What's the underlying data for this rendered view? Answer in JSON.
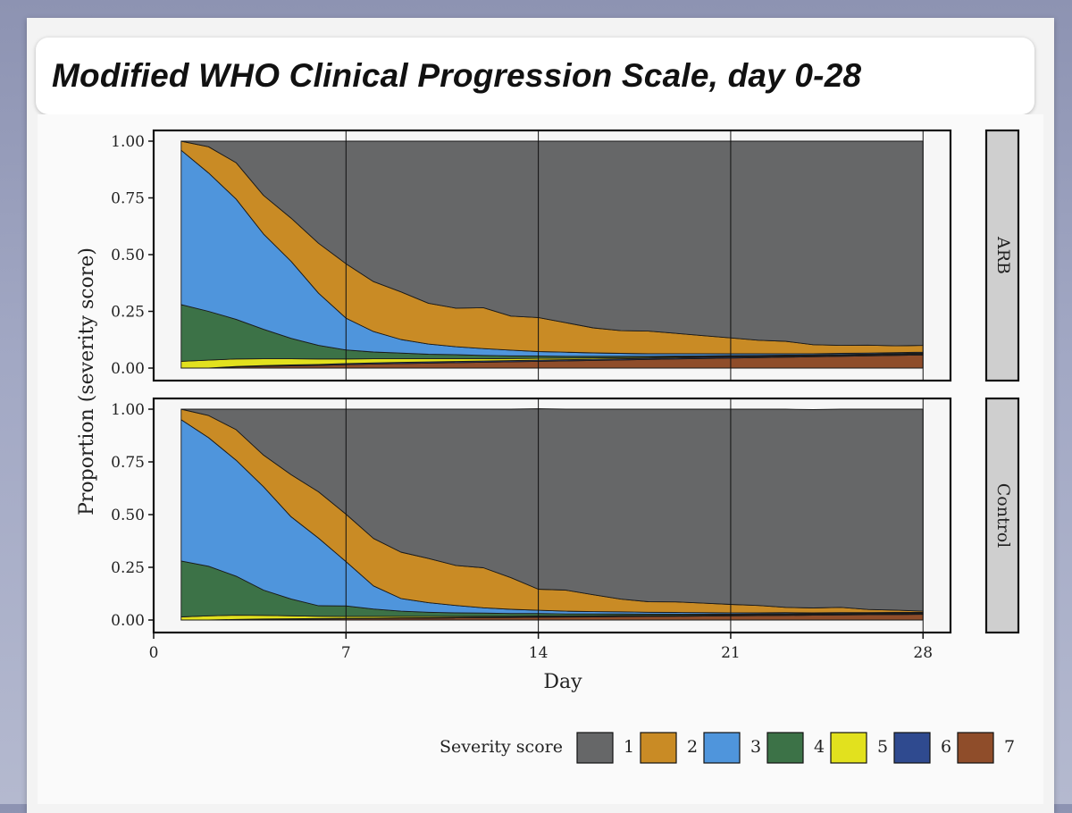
{
  "title": "Modified WHO Clinical Progression Scale, day 0-28",
  "chart_data": {
    "type": "area",
    "stacked": true,
    "x_label": "Day",
    "y_label": "Proportion (severity score)",
    "x_ticks": [
      "0",
      "7",
      "14",
      "21",
      "28"
    ],
    "x_range": [
      0,
      29
    ],
    "y_ticks": [
      "0.00",
      "0.25",
      "0.50",
      "0.75",
      "1.00"
    ],
    "y_range": [
      0,
      1
    ],
    "legend_title": "Severity score",
    "legend_position": "bottom-right",
    "categories": [
      "1",
      "2",
      "3",
      "4",
      "5",
      "6",
      "7"
    ],
    "colors": [
      "#666768",
      "#c98b25",
      "#4f95dc",
      "#3c7247",
      "#e2e11e",
      "#2f4a8f",
      "#8f4d2a"
    ],
    "x": [
      1,
      2,
      3,
      4,
      5,
      6,
      7,
      8,
      9,
      10,
      11,
      12,
      13,
      14,
      15,
      16,
      17,
      18,
      19,
      20,
      21,
      22,
      23,
      24,
      25,
      26,
      27,
      28
    ],
    "panels": [
      {
        "strip_label": "ARB",
        "series": [
          {
            "name": "7",
            "values": [
              0.0,
              0.0,
              0.005,
              0.008,
              0.01,
              0.012,
              0.015,
              0.018,
              0.02,
              0.022,
              0.024,
              0.026,
              0.028,
              0.03,
              0.032,
              0.034,
              0.036,
              0.038,
              0.04,
              0.042,
              0.044,
              0.046,
              0.048,
              0.05,
              0.052,
              0.054,
              0.056,
              0.058
            ]
          },
          {
            "name": "6",
            "values": [
              0.0,
              0.0,
              0.002,
              0.003,
              0.004,
              0.004,
              0.005,
              0.005,
              0.005,
              0.005,
              0.005,
              0.005,
              0.005,
              0.005,
              0.005,
              0.005,
              0.005,
              0.005,
              0.005,
              0.005,
              0.005,
              0.004,
              0.004,
              0.004,
              0.004,
              0.004,
              0.004,
              0.004
            ]
          },
          {
            "name": "5",
            "values": [
              0.03,
              0.035,
              0.033,
              0.03,
              0.027,
              0.024,
              0.02,
              0.018,
              0.016,
              0.014,
              0.012,
              0.01,
              0.009,
              0.008,
              0.007,
              0.006,
              0.005,
              0.004,
              0.004,
              0.003,
              0.003,
              0.003,
              0.002,
              0.002,
              0.002,
              0.002,
              0.002,
              0.002
            ]
          },
          {
            "name": "4",
            "values": [
              0.25,
              0.215,
              0.175,
              0.13,
              0.09,
              0.06,
              0.04,
              0.03,
              0.025,
              0.02,
              0.018,
              0.015,
              0.012,
              0.01,
              0.008,
              0.007,
              0.006,
              0.005,
              0.004,
              0.004,
              0.003,
              0.003,
              0.003,
              0.002,
              0.002,
              0.002,
              0.002,
              0.002
            ]
          },
          {
            "name": "3",
            "values": [
              0.68,
              0.61,
              0.53,
              0.42,
              0.34,
              0.23,
              0.14,
              0.09,
              0.06,
              0.045,
              0.035,
              0.03,
              0.025,
              0.02,
              0.018,
              0.015,
              0.013,
              0.011,
              0.01,
              0.009,
              0.008,
              0.007,
              0.006,
              0.005,
              0.005,
              0.004,
              0.004,
              0.004
            ]
          },
          {
            "name": "2",
            "values": [
              0.04,
              0.115,
              0.16,
              0.17,
              0.19,
              0.22,
              0.24,
              0.22,
              0.21,
              0.18,
              0.17,
              0.18,
              0.15,
              0.15,
              0.13,
              0.11,
              0.1,
              0.1,
              0.09,
              0.08,
              0.07,
              0.06,
              0.055,
              0.04,
              0.035,
              0.035,
              0.03,
              0.03
            ]
          },
          {
            "name": "1",
            "values": [
              0.0,
              0.025,
              0.095,
              0.239,
              0.339,
              0.45,
              0.54,
              0.619,
              0.664,
              0.714,
              0.736,
              0.734,
              0.771,
              0.777,
              0.8,
              0.823,
              0.835,
              0.837,
              0.847,
              0.857,
              0.867,
              0.877,
              0.882,
              0.897,
              0.9,
              0.899,
              0.902,
              0.9
            ]
          }
        ]
      },
      {
        "strip_label": "Control",
        "series": [
          {
            "name": "7",
            "values": [
              0.0,
              0.0,
              0.002,
              0.003,
              0.004,
              0.005,
              0.006,
              0.007,
              0.008,
              0.009,
              0.01,
              0.011,
              0.012,
              0.013,
              0.014,
              0.015,
              0.016,
              0.017,
              0.018,
              0.019,
              0.02,
              0.021,
              0.022,
              0.023,
              0.024,
              0.025,
              0.026,
              0.027
            ]
          },
          {
            "name": "6",
            "values": [
              0.0,
              0.0,
              0.001,
              0.002,
              0.002,
              0.002,
              0.002,
              0.002,
              0.002,
              0.002,
              0.002,
              0.002,
              0.002,
              0.002,
              0.002,
              0.002,
              0.002,
              0.002,
              0.002,
              0.002,
              0.002,
              0.002,
              0.002,
              0.002,
              0.002,
              0.002,
              0.002,
              0.002
            ]
          },
          {
            "name": "5",
            "values": [
              0.015,
              0.02,
              0.02,
              0.017,
              0.014,
              0.011,
              0.009,
              0.008,
              0.007,
              0.006,
              0.005,
              0.005,
              0.004,
              0.004,
              0.003,
              0.003,
              0.003,
              0.002,
              0.002,
              0.002,
              0.002,
              0.002,
              0.002,
              0.002,
              0.002,
              0.002,
              0.002,
              0.002
            ]
          },
          {
            "name": "4",
            "values": [
              0.265,
              0.235,
              0.185,
              0.12,
              0.08,
              0.05,
              0.05,
              0.035,
              0.025,
              0.02,
              0.017,
              0.015,
              0.013,
              0.012,
              0.01,
              0.009,
              0.008,
              0.007,
              0.006,
              0.005,
              0.004,
              0.004,
              0.004,
              0.003,
              0.003,
              0.003,
              0.003,
              0.003
            ]
          },
          {
            "name": "3",
            "values": [
              0.67,
              0.61,
              0.55,
              0.49,
              0.39,
              0.32,
              0.21,
              0.11,
              0.06,
              0.045,
              0.035,
              0.025,
              0.02,
              0.015,
              0.013,
              0.011,
              0.01,
              0.009,
              0.008,
              0.007,
              0.006,
              0.005,
              0.005,
              0.004,
              0.004,
              0.003,
              0.003,
              0.003
            ]
          },
          {
            "name": "2",
            "values": [
              0.05,
              0.105,
              0.145,
              0.15,
              0.2,
              0.22,
              0.225,
              0.225,
              0.22,
              0.21,
              0.19,
              0.19,
              0.15,
              0.1,
              0.1,
              0.08,
              0.06,
              0.05,
              0.05,
              0.045,
              0.04,
              0.035,
              0.025,
              0.023,
              0.025,
              0.015,
              0.011,
              0.005
            ]
          },
          {
            "name": "1",
            "values": [
              0.0,
              0.03,
              0.097,
              0.218,
              0.31,
              0.392,
              0.498,
              0.613,
              0.678,
              0.708,
              0.741,
              0.752,
              0.799,
              0.856,
              0.858,
              0.88,
              0.901,
              0.913,
              0.914,
              0.92,
              0.926,
              0.931,
              0.94,
              0.941,
              0.94,
              0.95,
              0.953,
              0.958
            ]
          }
        ]
      }
    ]
  }
}
